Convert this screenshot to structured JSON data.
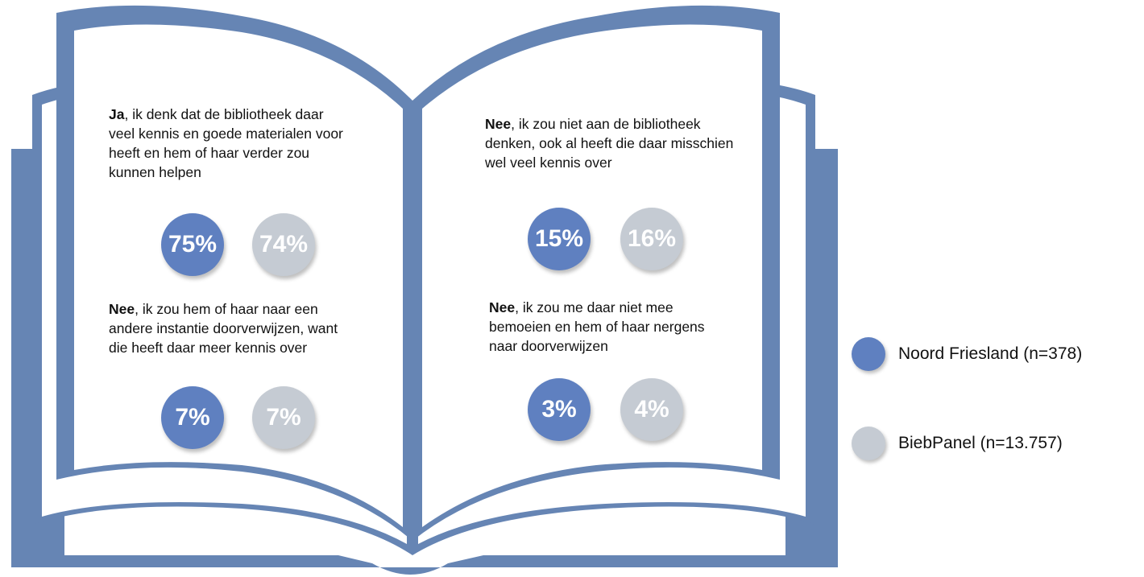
{
  "colors": {
    "book": "#6685b4",
    "series_primary": "#5f80c0",
    "series_secondary": "#c5cbd3"
  },
  "chart_data": {
    "type": "bubble-comparison",
    "series": [
      {
        "name": "Noord Friesland (n=378)",
        "color": "#5f80c0"
      },
      {
        "name": "BiebPanel (n=13.757)",
        "color": "#c5cbd3"
      }
    ],
    "answers": [
      {
        "bold": "Ja",
        "text": ", ik denk dat de bibliotheek daar veel kennis en goede materialen voor heeft en hem of haar verder zou kunnen helpen",
        "values": [
          "75%",
          "74%"
        ]
      },
      {
        "bold": "Nee",
        "text": ", ik zou hem of haar naar een andere instantie doorverwijzen, want die heeft daar meer kennis over",
        "values": [
          "7%",
          "7%"
        ]
      },
      {
        "bold": "Nee",
        "text": ", ik zou niet aan de bibliotheek denken, ook al heeft die daar misschien wel veel kennis over",
        "values": [
          "15%",
          "16%"
        ]
      },
      {
        "bold": "Nee",
        "text": ", ik zou me daar niet mee bemoeien en hem of haar nergens naar doorverwijzen",
        "values": [
          "3%",
          "4%"
        ]
      }
    ]
  }
}
